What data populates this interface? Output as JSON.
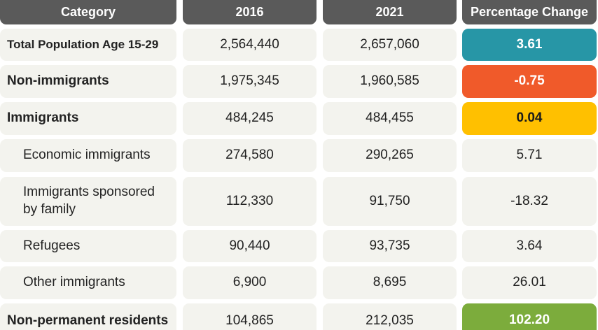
{
  "table": {
    "headers": {
      "category": "Category",
      "y2016": "2016",
      "y2021": "2021",
      "change": "Percentage Change"
    },
    "rows": [
      {
        "category": "Total Population Age 15-29",
        "y2016": "2,564,440",
        "y2021": "2,657,060",
        "change": "3.61",
        "highlight": "#2796a6"
      },
      {
        "category": "Non-immigrants",
        "y2016": "1,975,345",
        "y2021": "1,960,585",
        "change": "-0.75",
        "highlight": "#f05a2a"
      },
      {
        "category": "Immigrants",
        "y2016": "484,245",
        "y2021": "484,455",
        "change": "0.04",
        "highlight": "#ffc000"
      },
      {
        "category": "Economic immigrants",
        "y2016": "274,580",
        "y2021": "290,265",
        "change": "5.71"
      },
      {
        "category": "Immigrants sponsored by family",
        "y2016": "112,330",
        "y2021": "91,750",
        "change": "-18.32"
      },
      {
        "category": "Refugees",
        "y2016": "90,440",
        "y2021": "93,735",
        "change": "3.64"
      },
      {
        "category": "Other immigrants",
        "y2016": "6,900",
        "y2021": "8,695",
        "change": "26.01"
      },
      {
        "category": "Non-permanent residents",
        "y2016": "104,865",
        "y2021": "212,035",
        "change": "102.20",
        "highlight": "#7cac3c"
      }
    ]
  }
}
